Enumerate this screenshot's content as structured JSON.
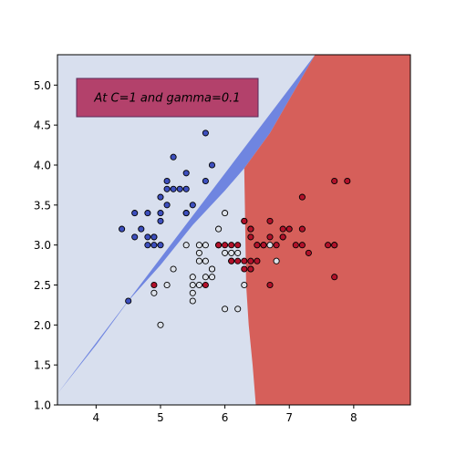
{
  "chart_data": {
    "type": "scatter",
    "title": "",
    "xlabel": "",
    "ylabel": "",
    "xlim": [
      3.4,
      8.88
    ],
    "ylim": [
      1.0,
      5.38
    ],
    "x_ticks": [
      4,
      5,
      6,
      7,
      8
    ],
    "y_ticks": [
      1.0,
      1.5,
      2.0,
      2.5,
      3.0,
      3.5,
      4.0,
      4.5,
      5.0
    ],
    "grid": false,
    "annotation": "At C=1 and gamma=0.1",
    "colors": {
      "region_0": "#6f85e0",
      "region_1": "#d8dfee",
      "region_2": "#d65f5a",
      "point_0": "#3d4fbe",
      "point_1": "#dde2ea",
      "point_2": "#b2112a",
      "annotation_bg": "#b3416b"
    },
    "boundaries": {
      "blue_white": [
        [
          3.4,
          1.14
        ],
        [
          4.0,
          1.75
        ],
        [
          4.5,
          2.3
        ],
        [
          5.0,
          2.75
        ],
        [
          5.5,
          3.25
        ],
        [
          6.0,
          3.68
        ],
        [
          6.3,
          3.96
        ],
        [
          6.7,
          4.4
        ],
        [
          7.4,
          5.38
        ]
      ],
      "white_red": [
        [
          6.48,
          1.0
        ],
        [
          6.43,
          1.5
        ],
        [
          6.37,
          2.0
        ],
        [
          6.33,
          2.5
        ],
        [
          6.32,
          3.0
        ],
        [
          6.31,
          3.5
        ],
        [
          6.3,
          3.96
        ],
        [
          6.7,
          4.4
        ],
        [
          7.4,
          5.38
        ]
      ]
    },
    "series": [
      {
        "class_index": 0,
        "x": [
          5.7,
          5.4,
          5.8,
          5.2,
          5.1,
          5.1,
          5.0,
          5.4,
          5.5,
          5.4,
          5.3,
          5.7,
          4.4,
          4.6,
          4.7,
          4.6,
          4.8,
          4.9,
          5.0,
          5.0,
          4.8,
          4.9,
          4.9,
          4.8,
          4.5,
          5.1,
          5.0,
          5.4,
          5.2
        ],
        "y": [
          4.4,
          3.9,
          4.0,
          4.1,
          3.8,
          3.7,
          3.6,
          3.7,
          3.5,
          3.4,
          3.7,
          3.8,
          3.2,
          3.4,
          3.2,
          3.1,
          3.4,
          3.1,
          3.4,
          3.0,
          3.0,
          3.0,
          3.1,
          3.1,
          2.3,
          3.5,
          3.3,
          3.4,
          3.7
        ]
      },
      {
        "class_index": 1,
        "x": [
          6.0,
          5.9,
          6.3,
          6.4,
          6.0,
          5.4,
          5.6,
          5.7,
          5.6,
          5.9,
          5.8,
          6.1,
          6.2,
          6.1,
          5.7,
          5.8,
          5.5,
          5.6,
          5.5,
          5.5,
          5.7,
          5.8,
          5.2,
          4.9,
          5.1,
          5.6,
          6.0,
          6.2,
          5.0,
          6.7,
          6.6,
          6.8,
          6.3,
          5.5
        ],
        "y": [
          3.4,
          3.2,
          3.3,
          3.2,
          2.9,
          3.0,
          3.0,
          3.0,
          2.9,
          3.0,
          2.7,
          2.8,
          2.9,
          2.9,
          2.8,
          2.6,
          2.6,
          2.5,
          2.5,
          2.4,
          2.6,
          2.7,
          2.7,
          2.4,
          2.5,
          2.8,
          2.2,
          2.2,
          2.0,
          3.0,
          3.0,
          2.8,
          2.5,
          2.3
        ]
      },
      {
        "class_index": 2,
        "x": [
          7.7,
          7.9,
          7.2,
          6.7,
          6.3,
          6.4,
          6.5,
          6.9,
          6.7,
          6.4,
          6.8,
          7.2,
          7.1,
          7.0,
          7.6,
          7.7,
          7.3,
          6.1,
          6.3,
          6.4,
          6.4,
          6.2,
          6.4,
          7.7,
          6.7,
          6.3,
          6.5,
          4.9,
          5.7,
          6.0,
          6.1,
          6.2,
          5.9,
          6.6,
          6.9,
          7.7,
          7.2,
          6.5,
          6.9
        ],
        "y": [
          3.8,
          3.8,
          3.6,
          3.3,
          3.3,
          3.2,
          3.0,
          3.1,
          3.1,
          3.1,
          3.0,
          3.0,
          3.0,
          3.2,
          3.0,
          3.0,
          2.9,
          2.8,
          2.8,
          2.8,
          2.7,
          2.8,
          2.7,
          2.6,
          2.5,
          2.7,
          3.0,
          2.5,
          2.5,
          3.0,
          3.0,
          3.0,
          3.0,
          3.0,
          3.2,
          3.0,
          3.2,
          2.8,
          3.1
        ]
      }
    ]
  }
}
